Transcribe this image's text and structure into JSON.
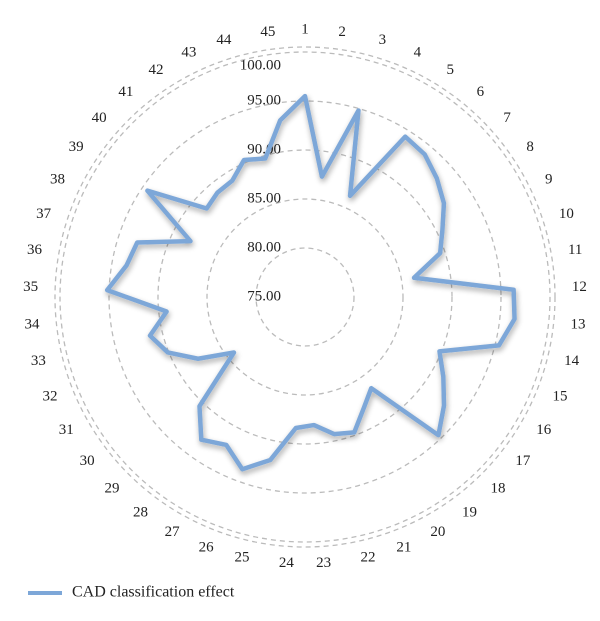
{
  "chart_data": {
    "type": "radar",
    "categories": [
      "1",
      "2",
      "3",
      "4",
      "5",
      "6",
      "7",
      "8",
      "9",
      "10",
      "11",
      "12",
      "13",
      "14",
      "15",
      "16",
      "17",
      "18",
      "19",
      "20",
      "21",
      "22",
      "23",
      "24",
      "25",
      "26",
      "27",
      "28",
      "29",
      "30",
      "31",
      "32",
      "33",
      "34",
      "35",
      "36",
      "37",
      "38",
      "39",
      "40",
      "41",
      "42",
      "43",
      "44",
      "45"
    ],
    "series": [
      {
        "name": "CAD classification effect",
        "color": "#7da7d8",
        "values": [
          95.5,
          87.4,
          94.8,
          86.3,
          94.3,
          94.0,
          93.1,
          92.1,
          90.6,
          89.5,
          86.3,
          96.3,
          96.5,
          95.4,
          89.8,
          91.3,
          93.0,
          94.6,
          86.5,
          87.8,
          89.7,
          89.3,
          88.1,
          88.4,
          92.0,
          93.7,
          92.1,
          93.0,
          90.5,
          84.2,
          87.6,
          90.1,
          91.3,
          89.2,
          95.2,
          93.5,
          93.0,
          88.0,
          94.4,
          88.5,
          88.9,
          89.0,
          90.3,
          89.7,
          93.2
        ]
      }
    ],
    "ylim": [
      75,
      100
    ],
    "yticks": [
      {
        "value": 75,
        "label": "75.00"
      },
      {
        "value": 80,
        "label": "80.00"
      },
      {
        "value": 85,
        "label": "85.00"
      },
      {
        "value": 90,
        "label": "90.00"
      },
      {
        "value": 95,
        "label": "95.00"
      },
      {
        "value": 100,
        "label": "100.00"
      }
    ],
    "grid": true,
    "legend": "bottom-left"
  }
}
